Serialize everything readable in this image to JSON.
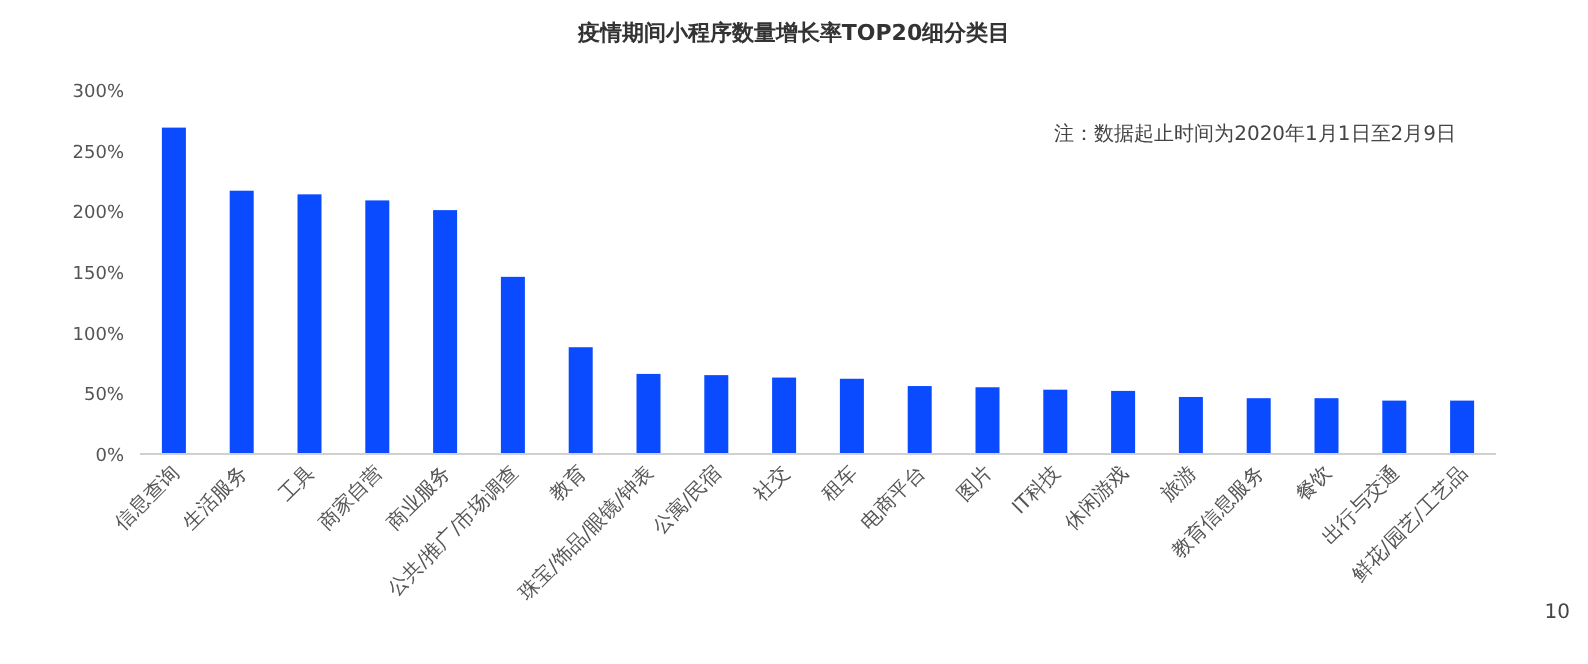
{
  "chart_data": {
    "type": "bar",
    "title": "疫情期间小程序数量增长率TOP20细分类目",
    "categories": [
      "信息查询",
      "生活服务",
      "工具",
      "商家自营",
      "商业服务",
      "公共/推广/市场调查",
      "教育",
      "珠宝/饰品/眼镜/钟表",
      "公寓/民宿",
      "社交",
      "租车",
      "电商平台",
      "图片",
      "IT科技",
      "休闲游戏",
      "旅游",
      "教育信息服务",
      "餐饮",
      "出行与交通",
      "鲜花/园艺/工艺品"
    ],
    "values": [
      269,
      217,
      214,
      209,
      201,
      146,
      88,
      66,
      65,
      63,
      62,
      56,
      55,
      53,
      52,
      47,
      46,
      46,
      44,
      44
    ],
    "color": "#0a4bff",
    "ylim": [
      0,
      300
    ],
    "yticks": [
      {
        "value": 0,
        "label": "0%"
      },
      {
        "value": 50,
        "label": "50%"
      },
      {
        "value": 100,
        "label": "100%"
      },
      {
        "value": 150,
        "label": "150%"
      },
      {
        "value": 200,
        "label": "200%"
      },
      {
        "value": 250,
        "label": "250%"
      },
      {
        "value": 300,
        "label": "300%"
      }
    ],
    "grid": false,
    "annotations": [
      "注：数据起止时间为2020年1月1日至2月9日",
      "10"
    ]
  }
}
